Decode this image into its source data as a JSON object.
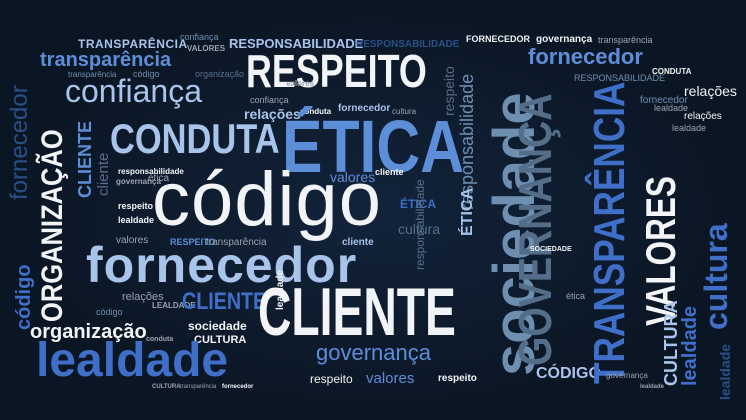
{
  "palette": {
    "background": "#0c1826",
    "white": "#f2f4f7",
    "light_blue": "#a9c4ea",
    "mid_blue": "#5d8ed8",
    "royal_blue": "#3f6fc8",
    "steel": "#6f8fb0",
    "slate": "#546e89",
    "dark_blue": "#2a4f86",
    "gray": "#9aa4b0"
  },
  "words": {
    "codigo": "código",
    "fornecedor_big": "fornecedor",
    "respeito_big": "RESPEITO",
    "etica_big": "ÉTICA",
    "conduta_big": "CONDUTA",
    "cliente_big": "CLIENTE",
    "lealdade_big": "lealdade",
    "sociedade_big": "sociedade",
    "governanca_big": "GOVERNANÇA",
    "transparencia_vert_big": "TRANSPARÊNCIA",
    "valores_vert_big": "VALORES",
    "organizacao_vert": "ORGANIZAÇÃO",
    "confianca_big": "confiança",
    "transparencia_top": "transparência",
    "transparencia_caps_top": "TRANSPARÊNCIA",
    "responsabilidade_top": "RESPONSABILIDADE",
    "responsabilidade_top2": "RESPONSABILIDADE",
    "fornecedor_tr": "fornecedor",
    "governanca_tr": "governança",
    "transparencia_tr": "transparência",
    "relacoes_tr": "relações",
    "lealdade_tr": "lealdade",
    "relacoes_mid": "relações",
    "relacoes_right": "relações",
    "governanca_bottom": "governança",
    "valores_bottom": "valores",
    "respeito_bottom": "respeito",
    "respeito_bottom2": "respeito",
    "codigo_caps_bottom": "CÓDIGO",
    "cultura_left": "CULTURA",
    "cultura_vert_right": "CULTURA",
    "lealdade_vert_right": "lealdade",
    "cultura_vert_far": "cultura",
    "lealdade_vert_far": "lealdade",
    "organizacao_bottom": "organização",
    "sociedade_small": "sociedade",
    "cliente_left": "CLIENTE",
    "cliente_small": "cliente",
    "cliente_small2": "cliente",
    "valores_small": "valores",
    "valores_small2": "valores",
    "valores_small3": "valores",
    "confianca_small": "confiança",
    "confianca_small2": "confiança",
    "fornecedor_left_vert": "fornecedor",
    "codigo_left_vert": "código",
    "governanca_small": "governança",
    "respeito_small": "respeito",
    "respeito_small2": "RESPEITO",
    "transparencia_small": "transparência",
    "transparencia_small2": "transparência",
    "relacoes_small": "relações",
    "lealdade_small": "lealdade",
    "lealdade_small2": "lealdade",
    "lealdade_small3": "LEALDADE",
    "lealdade_small4": "lealdade",
    "cultura_small": "cultura",
    "cultura_small2": "CULTURA",
    "etica_small": "ética",
    "etica_small2": "ÉTICA",
    "etica_small3": "ÉTICA",
    "etica_small4": "ética",
    "responsabilidade_vert": "responsabilidade",
    "responsabilidade_vert2": "responsabilidade",
    "responsabilidade_small": "responsabilidade",
    "responsabilidade_small2": "RESPONSABILIDADE",
    "codigo_small": "código",
    "codigo_small2": "código",
    "sociedade_tiny": "SOCIEDADE",
    "conduta_small": "conduta",
    "conduta_small2": "conduta",
    "conduta_small3": "CONDUTA",
    "fornecedor_small": "fornecedor",
    "fornecedor_small2": "fornecedor",
    "fornecedor_small3": "FORNECEDOR",
    "cultura_tiny": "CULTURA",
    "transparencia_tiny": "transparência",
    "fornecedor_tiny": "fornecedor",
    "cultura_vert_small": "cultura",
    "organizacao_small": "organização",
    "valores_tiny": "VALORES",
    "cliente_vert": "CLIENTE",
    "cliente_vert2": "cliente",
    "respeito_vert": "respeito",
    "sociedade_vert": "sociedade",
    "lealdade_vert_small": "lealdade",
    "governanca_vert_small": "governança"
  }
}
